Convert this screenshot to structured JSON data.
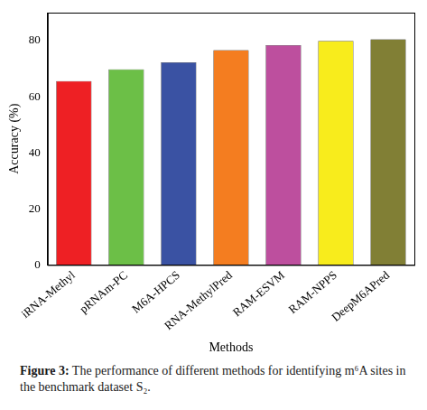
{
  "chart_data": {
    "type": "bar",
    "caption": "Figure 3: The performance of different methods for identifying m⁶A sites in the benchmark dataset S₂.",
    "x_label": "Methods",
    "y_label": "Accuracy (%)",
    "categories": [
      "iRNA-Methyl",
      "pRNAm-PC",
      "M6A-HPCS",
      "RNA-MethylPred",
      "RAM-ESVM",
      "RAM-NPPS",
      "DeepM6APred"
    ],
    "values": [
      65.6,
      69.8,
      72.3,
      76.6,
      78.4,
      79.9,
      80.5
    ],
    "colors": [
      "#ee2024",
      "#6cbf47",
      "#3a52a3",
      "#f47d20",
      "#bd4f9e",
      "#f8ec1c",
      "#817f35"
    ],
    "ylim": [
      0,
      90
    ],
    "yticks": [
      0,
      20,
      40,
      60,
      80
    ],
    "grid": false
  }
}
